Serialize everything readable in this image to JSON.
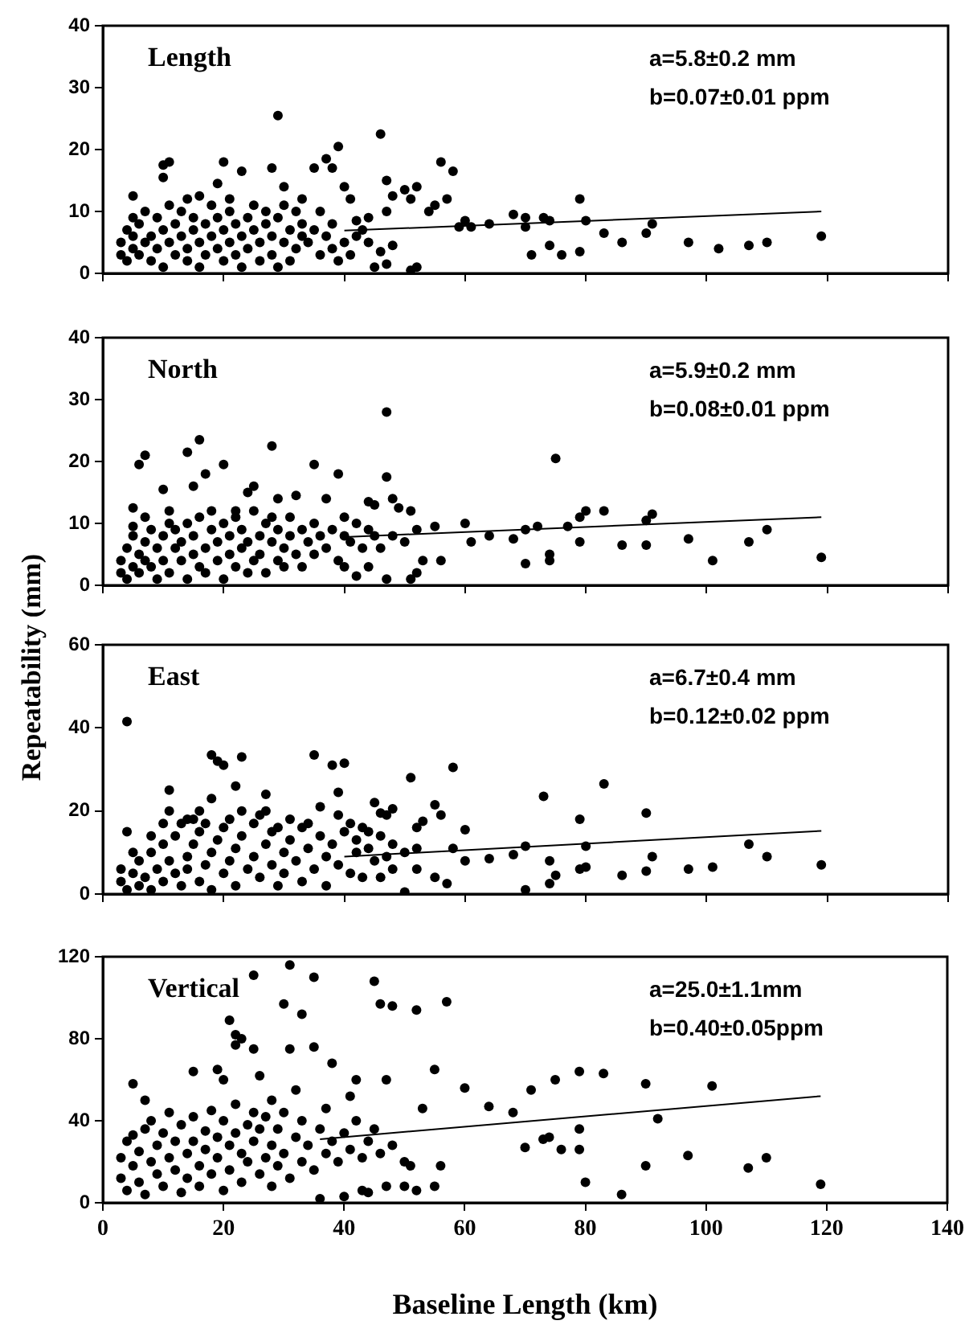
{
  "chart_data": [
    {
      "type": "scatter",
      "title": "Length",
      "annotations": [
        "a=5.8±0.2 mm",
        "b=0.07±0.01 ppm"
      ],
      "xlim": [
        0,
        140
      ],
      "xticks": [
        0,
        20,
        40,
        60,
        80,
        100,
        120,
        140
      ],
      "ylim": [
        0,
        40
      ],
      "yticks": [
        0,
        10,
        20,
        30,
        40
      ],
      "tick_labels": "y",
      "grid": false,
      "legend": false,
      "marker": "circle",
      "series": [
        {
          "type": "scatter",
          "color": "#000000",
          "x": [
            5,
            5,
            10,
            10,
            11,
            14,
            16,
            19,
            20,
            21,
            23,
            28,
            29,
            30,
            33,
            35,
            37,
            38,
            39,
            40,
            41,
            42,
            44,
            46,
            47,
            47,
            48,
            50,
            51,
            52,
            54,
            55,
            56,
            57,
            58,
            59,
            60,
            61,
            64,
            68,
            70,
            70,
            71,
            73,
            74,
            74,
            76,
            79,
            79,
            80,
            83,
            86,
            90,
            91,
            97,
            102,
            107,
            110,
            119,
            45,
            47,
            51,
            52,
            44,
            46,
            48,
            41,
            39,
            3,
            3,
            4,
            4,
            5,
            5,
            6,
            6,
            7,
            7,
            8,
            8,
            9,
            9,
            10,
            10,
            11,
            11,
            12,
            12,
            13,
            13,
            14,
            14,
            15,
            15,
            16,
            16,
            17,
            17,
            18,
            18,
            19,
            19,
            20,
            20,
            21,
            21,
            22,
            22,
            23,
            23,
            24,
            24,
            25,
            25,
            26,
            26,
            27,
            27,
            28,
            28,
            29,
            29,
            30,
            30,
            31,
            31,
            32,
            32,
            33,
            33,
            34,
            35,
            36,
            37,
            38,
            40,
            42,
            43,
            36,
            38
          ],
          "values": [
            9,
            12.5,
            17.5,
            15.5,
            18,
            12,
            12.5,
            14.5,
            18,
            12,
            16.5,
            17,
            25.5,
            14,
            12,
            17,
            18.5,
            17,
            20.5,
            14,
            12,
            8.5,
            9,
            22.5,
            15,
            10,
            12.5,
            13.5,
            12,
            14,
            10,
            11,
            18,
            12,
            16.5,
            7.5,
            8.5,
            7.5,
            8,
            9.5,
            7.5,
            9,
            3,
            9,
            8.5,
            4.5,
            3,
            12,
            3.5,
            8.5,
            6.5,
            5,
            6.5,
            8,
            5,
            4,
            4.5,
            5,
            6,
            1,
            1.5,
            0.5,
            1,
            5,
            3.5,
            4.5,
            3,
            2,
            5,
            3,
            7,
            2,
            4,
            6,
            3,
            8,
            5,
            10,
            2,
            6,
            4,
            9,
            7,
            1,
            5,
            11,
            3,
            8,
            6,
            10,
            2,
            4,
            7,
            9,
            5,
            1,
            3,
            8,
            6,
            11,
            4,
            9,
            2,
            7,
            5,
            10,
            3,
            8,
            6,
            1,
            4,
            9,
            7,
            11,
            2,
            5,
            8,
            10,
            3,
            6,
            9,
            1,
            5,
            11,
            7,
            2,
            4,
            10,
            8,
            6,
            5,
            7,
            3,
            6,
            8,
            5,
            6,
            7,
            10,
            4
          ]
        },
        {
          "type": "line",
          "color": "#000000",
          "x": [
            40,
            119
          ],
          "values": [
            6.9,
            10
          ],
          "marker": "none"
        }
      ]
    },
    {
      "type": "scatter",
      "title": "North",
      "ylabel": "Repeatability (mm)",
      "annotations": [
        "a=5.9±0.2 mm",
        "b=0.08±0.01 ppm"
      ],
      "xlim": [
        0,
        140
      ],
      "xticks": [
        0,
        20,
        40,
        60,
        80,
        100,
        120,
        140
      ],
      "ylim": [
        0,
        40
      ],
      "yticks": [
        0,
        10,
        20,
        30,
        40
      ],
      "tick_labels": "y",
      "grid": false,
      "legend": false,
      "marker": "circle",
      "series": [
        {
          "type": "scatter",
          "color": "#000000",
          "x": [
            5,
            5,
            6,
            7,
            7,
            10,
            11,
            14,
            15,
            16,
            17,
            20,
            22,
            24,
            25,
            28,
            29,
            32,
            35,
            37,
            39,
            40,
            44,
            45,
            47,
            47,
            48,
            49,
            51,
            52,
            53,
            55,
            56,
            60,
            61,
            64,
            68,
            70,
            70,
            72,
            74,
            74,
            75,
            77,
            79,
            79,
            80,
            83,
            86,
            90,
            90,
            91,
            97,
            101,
            107,
            110,
            119,
            40,
            42,
            44,
            47,
            51,
            52,
            3,
            3,
            4,
            4,
            5,
            5,
            6,
            6,
            7,
            7,
            8,
            8,
            9,
            9,
            10,
            10,
            11,
            11,
            12,
            12,
            13,
            13,
            14,
            14,
            15,
            15,
            16,
            16,
            17,
            17,
            18,
            18,
            19,
            19,
            20,
            20,
            21,
            21,
            22,
            22,
            23,
            23,
            24,
            24,
            25,
            25,
            26,
            26,
            27,
            27,
            28,
            28,
            29,
            29,
            30,
            30,
            31,
            31,
            32,
            33,
            33,
            34,
            35,
            35,
            36,
            37,
            38,
            39,
            40,
            41,
            42,
            43,
            44,
            45,
            46,
            48,
            50
          ],
          "values": [
            9.5,
            12.5,
            19.5,
            21,
            11,
            15.5,
            12,
            21.5,
            16,
            23.5,
            18,
            19.5,
            12,
            15,
            16,
            22.5,
            14,
            14.5,
            19.5,
            14,
            18,
            11,
            13.5,
            13,
            28,
            17.5,
            14,
            12.5,
            12,
            9,
            4,
            9.5,
            4,
            10,
            7,
            8,
            7.5,
            9,
            3.5,
            9.5,
            4,
            5,
            20.5,
            9.5,
            7,
            11,
            12,
            12,
            6.5,
            6.5,
            10.5,
            11.5,
            7.5,
            4,
            7,
            9,
            4.5,
            3,
            1.5,
            3,
            1,
            1,
            2,
            4,
            2,
            6,
            1,
            3,
            8,
            5,
            2,
            7,
            4,
            9,
            3,
            6,
            1,
            8,
            4,
            10,
            2,
            6,
            9,
            4,
            7,
            1,
            10,
            5,
            8,
            3,
            11,
            6,
            2,
            9,
            12,
            4,
            7,
            1,
            10,
            5,
            8,
            3,
            11,
            6,
            9,
            2,
            7,
            4,
            12,
            8,
            5,
            10,
            2,
            7,
            11,
            4,
            9,
            6,
            3,
            8,
            11,
            5,
            9,
            3,
            7,
            10,
            5,
            8,
            6,
            9,
            4,
            8,
            7,
            10,
            6,
            9,
            8,
            6,
            8,
            7
          ]
        },
        {
          "type": "line",
          "color": "#000000",
          "x": [
            40,
            119
          ],
          "values": [
            7.8,
            11
          ],
          "marker": "none"
        }
      ]
    },
    {
      "type": "scatter",
      "title": "East",
      "annotations": [
        "a=6.7±0.4 mm",
        "b=0.12±0.02 ppm"
      ],
      "xlim": [
        0,
        140
      ],
      "xticks": [
        0,
        20,
        40,
        60,
        80,
        100,
        120,
        140
      ],
      "ylim": [
        0,
        60
      ],
      "yticks": [
        0,
        20,
        40,
        60
      ],
      "tick_labels": "y",
      "grid": false,
      "legend": false,
      "marker": "circle",
      "series": [
        {
          "type": "scatter",
          "color": "#000000",
          "x": [
            4,
            4,
            5,
            8,
            10,
            11,
            11,
            13,
            14,
            16,
            18,
            18,
            19,
            20,
            21,
            22,
            23,
            26,
            27,
            27,
            35,
            38,
            39,
            40,
            41,
            45,
            46,
            47,
            48,
            51,
            52,
            53,
            55,
            56,
            58,
            58,
            60,
            60,
            64,
            68,
            70,
            70,
            73,
            74,
            74,
            75,
            79,
            79,
            80,
            80,
            83,
            86,
            90,
            90,
            91,
            97,
            101,
            107,
            110,
            119,
            55,
            57,
            46,
            48,
            52,
            50,
            3,
            3,
            4,
            5,
            6,
            6,
            7,
            8,
            8,
            9,
            10,
            10,
            11,
            12,
            12,
            13,
            14,
            14,
            15,
            16,
            16,
            17,
            18,
            18,
            19,
            20,
            20,
            21,
            22,
            22,
            23,
            24,
            25,
            25,
            26,
            27,
            28,
            28,
            29,
            30,
            30,
            31,
            32,
            33,
            33,
            34,
            35,
            36,
            37,
            37,
            38,
            39,
            40,
            41,
            42,
            42,
            43,
            44,
            45,
            46,
            47,
            48,
            50,
            52,
            15,
            17,
            23,
            29,
            31,
            34,
            36,
            39,
            43,
            44
          ],
          "values": [
            41.5,
            15,
            10,
            14,
            17,
            20,
            25,
            17,
            18,
            20,
            23,
            33.5,
            32,
            31,
            18,
            26,
            33,
            19,
            24,
            20,
            33.5,
            31,
            24.5,
            31.5,
            17,
            22,
            19.5,
            19,
            20.5,
            28,
            16,
            17.5,
            21.5,
            19,
            30.5,
            11,
            15.5,
            8,
            8.5,
            9.5,
            11.5,
            1,
            23.5,
            2.5,
            8,
            4.5,
            18,
            6,
            11.5,
            6.5,
            26.5,
            4.5,
            5.5,
            19.5,
            9,
            6,
            6.5,
            12,
            9,
            7,
            4,
            2.5,
            4,
            6,
            6,
            0.5,
            3,
            6,
            1,
            5,
            8,
            2,
            4,
            10,
            1,
            6,
            12,
            3,
            8,
            5,
            14,
            2,
            9,
            6,
            12,
            3,
            15,
            7,
            10,
            1,
            13,
            5,
            16,
            8,
            11,
            2,
            14,
            6,
            9,
            17,
            4,
            12,
            7,
            15,
            2,
            10,
            5,
            13,
            8,
            16,
            3,
            11,
            6,
            14,
            9,
            2,
            12,
            7,
            15,
            5,
            10,
            13,
            4,
            11,
            8,
            14,
            9,
            12,
            10,
            11,
            18,
            17,
            20,
            16,
            18,
            17,
            21,
            19,
            16,
            15
          ]
        },
        {
          "type": "line",
          "color": "#000000",
          "x": [
            40,
            119
          ],
          "values": [
            9,
            15.2
          ],
          "marker": "none"
        }
      ]
    },
    {
      "type": "scatter",
      "title": "Vertical",
      "xlabel": "Baseline Length (km)",
      "annotations": [
        "a=25.0±1.1mm",
        "b=0.40±0.05ppm"
      ],
      "xlim": [
        0,
        140
      ],
      "xticks": [
        0,
        20,
        40,
        60,
        80,
        100,
        120,
        140
      ],
      "ylim": [
        0,
        120
      ],
      "yticks": [
        0,
        40,
        80,
        120
      ],
      "grid": false,
      "legend": false,
      "marker": "circle",
      "series": [
        {
          "type": "scatter",
          "color": "#000000",
          "x": [
            5,
            7,
            15,
            19,
            20,
            21,
            22,
            22,
            23,
            25,
            25,
            26,
            28,
            30,
            31,
            31,
            32,
            33,
            35,
            35,
            37,
            38,
            41,
            42,
            45,
            46,
            47,
            48,
            52,
            53,
            55,
            57,
            60,
            64,
            68,
            70,
            71,
            73,
            74,
            75,
            76,
            79,
            79,
            79,
            80,
            83,
            86,
            90,
            90,
            92,
            97,
            101,
            107,
            110,
            119,
            36,
            40,
            43,
            44,
            50,
            51,
            52,
            55,
            56,
            47,
            3,
            3,
            4,
            4,
            5,
            5,
            6,
            6,
            7,
            7,
            8,
            8,
            9,
            9,
            10,
            10,
            11,
            11,
            12,
            12,
            13,
            13,
            14,
            14,
            15,
            15,
            16,
            16,
            17,
            17,
            18,
            18,
            19,
            19,
            20,
            20,
            21,
            21,
            22,
            22,
            23,
            23,
            24,
            24,
            25,
            25,
            26,
            26,
            27,
            27,
            28,
            28,
            29,
            29,
            30,
            30,
            31,
            32,
            33,
            33,
            34,
            35,
            36,
            37,
            38,
            39,
            40,
            41,
            42,
            43,
            44,
            45,
            46,
            48,
            50
          ],
          "values": [
            58,
            50,
            64,
            65,
            60,
            89,
            82,
            77,
            80,
            111,
            75,
            62,
            50,
            97,
            116,
            75,
            55,
            92,
            110,
            76,
            46,
            68,
            52,
            60,
            108,
            97,
            60,
            96,
            94,
            46,
            65,
            98,
            56,
            47,
            44,
            27,
            55,
            31,
            32,
            60,
            26,
            64,
            36,
            26,
            10,
            63,
            4,
            58,
            18,
            41,
            23,
            57,
            17,
            22,
            9,
            2,
            3,
            6,
            5,
            8,
            18,
            6,
            8,
            18,
            8,
            22,
            12,
            30,
            6,
            18,
            33,
            10,
            25,
            36,
            4,
            20,
            40,
            14,
            28,
            8,
            34,
            22,
            44,
            16,
            30,
            5,
            38,
            24,
            12,
            42,
            30,
            18,
            8,
            35,
            26,
            45,
            14,
            32,
            22,
            6,
            40,
            28,
            16,
            48,
            34,
            10,
            24,
            38,
            20,
            44,
            30,
            14,
            36,
            22,
            42,
            8,
            28,
            18,
            36,
            24,
            44,
            12,
            32,
            20,
            40,
            28,
            16,
            36,
            24,
            30,
            20,
            34,
            26,
            40,
            22,
            30,
            36,
            24,
            28,
            20
          ]
        },
        {
          "type": "line",
          "color": "#000000",
          "x": [
            36,
            119
          ],
          "values": [
            31,
            52
          ],
          "marker": "none"
        }
      ]
    }
  ]
}
